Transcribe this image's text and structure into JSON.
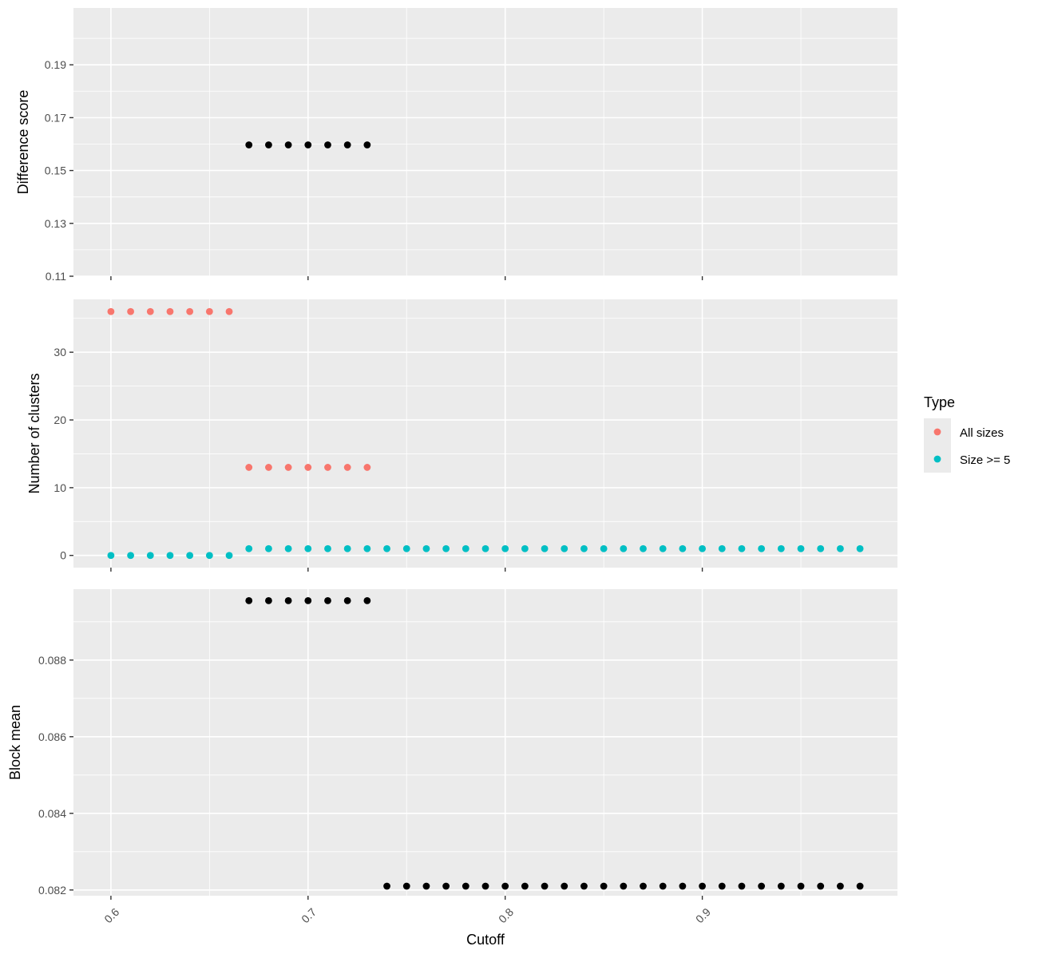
{
  "chart_data": [
    {
      "type": "scatter",
      "ylabel": "Difference score",
      "ylim": [
        0.11,
        0.2115
      ],
      "yticks": [
        "0.11",
        "0.13",
        "0.15",
        "0.17",
        "0.19"
      ],
      "series": [
        {
          "color": "#000000",
          "x": [
            0.67,
            0.68,
            0.69,
            0.7,
            0.71,
            0.72,
            0.73
          ],
          "y": [
            0.1597,
            0.1597,
            0.1597,
            0.1597,
            0.1597,
            0.1597,
            0.1597
          ]
        }
      ]
    },
    {
      "type": "scatter",
      "ylabel": "Number of clusters",
      "ylim": [
        -1.8,
        37.8
      ],
      "yticks": [
        "0",
        "10",
        "20",
        "30"
      ],
      "series": [
        {
          "name": "All sizes",
          "color": "#f8766d",
          "x": [
            0.6,
            0.61,
            0.62,
            0.63,
            0.64,
            0.65,
            0.66,
            0.67,
            0.68,
            0.69,
            0.7,
            0.71,
            0.72,
            0.73
          ],
          "y": [
            36,
            36,
            36,
            36,
            36,
            36,
            36,
            13,
            13,
            13,
            13,
            13,
            13,
            13
          ]
        },
        {
          "name": "Size >= 5",
          "color": "#00bfc4",
          "x": [
            0.6,
            0.61,
            0.62,
            0.63,
            0.64,
            0.65,
            0.66,
            0.67,
            0.68,
            0.69,
            0.7,
            0.71,
            0.72,
            0.73,
            0.74,
            0.75,
            0.76,
            0.77,
            0.78,
            0.79,
            0.8,
            0.81,
            0.82,
            0.83,
            0.84,
            0.85,
            0.86,
            0.87,
            0.88,
            0.89,
            0.9,
            0.91,
            0.92,
            0.93,
            0.94,
            0.95,
            0.96,
            0.97,
            0.98
          ],
          "y": [
            0,
            0,
            0,
            0,
            0,
            0,
            0,
            1,
            1,
            1,
            1,
            1,
            1,
            1,
            1,
            1,
            1,
            1,
            1,
            1,
            1,
            1,
            1,
            1,
            1,
            1,
            1,
            1,
            1,
            1,
            1,
            1,
            1,
            1,
            1,
            1,
            1,
            1,
            1
          ]
        }
      ]
    },
    {
      "type": "scatter",
      "ylabel": "Block mean",
      "ylim": [
        0.08185,
        0.08985
      ],
      "yticks": [
        "0.082",
        "0.084",
        "0.086",
        "0.088"
      ],
      "series": [
        {
          "color": "#000000",
          "x": [
            0.67,
            0.68,
            0.69,
            0.7,
            0.71,
            0.72,
            0.73
          ],
          "y": [
            0.08955,
            0.08955,
            0.08955,
            0.08955,
            0.08955,
            0.08955,
            0.08955
          ]
        },
        {
          "color": "#000000",
          "x": [
            0.74,
            0.75,
            0.76,
            0.77,
            0.78,
            0.79,
            0.8,
            0.81,
            0.82,
            0.83,
            0.84,
            0.85,
            0.86,
            0.87,
            0.88,
            0.89,
            0.9,
            0.91,
            0.92,
            0.93,
            0.94,
            0.95,
            0.96,
            0.97,
            0.98
          ],
          "y": [
            0.0821,
            0.0821,
            0.0821,
            0.0821,
            0.0821,
            0.0821,
            0.0821,
            0.0821,
            0.0821,
            0.0821,
            0.0821,
            0.0821,
            0.0821,
            0.0821,
            0.0821,
            0.0821,
            0.0821,
            0.0821,
            0.0821,
            0.0821,
            0.0821,
            0.0821,
            0.0821,
            0.0821,
            0.0821
          ]
        }
      ]
    }
  ],
  "x_axis": {
    "label": "Cutoff",
    "xlim": [
      0.581,
      0.999
    ],
    "ticks": [
      "0.6",
      "0.7",
      "0.8",
      "0.9"
    ]
  },
  "legend": {
    "title": "Type",
    "placement": "right",
    "items": [
      {
        "label": "All sizes",
        "color": "#f8766d"
      },
      {
        "label": "Size >= 5",
        "color": "#00bfc4"
      }
    ]
  }
}
